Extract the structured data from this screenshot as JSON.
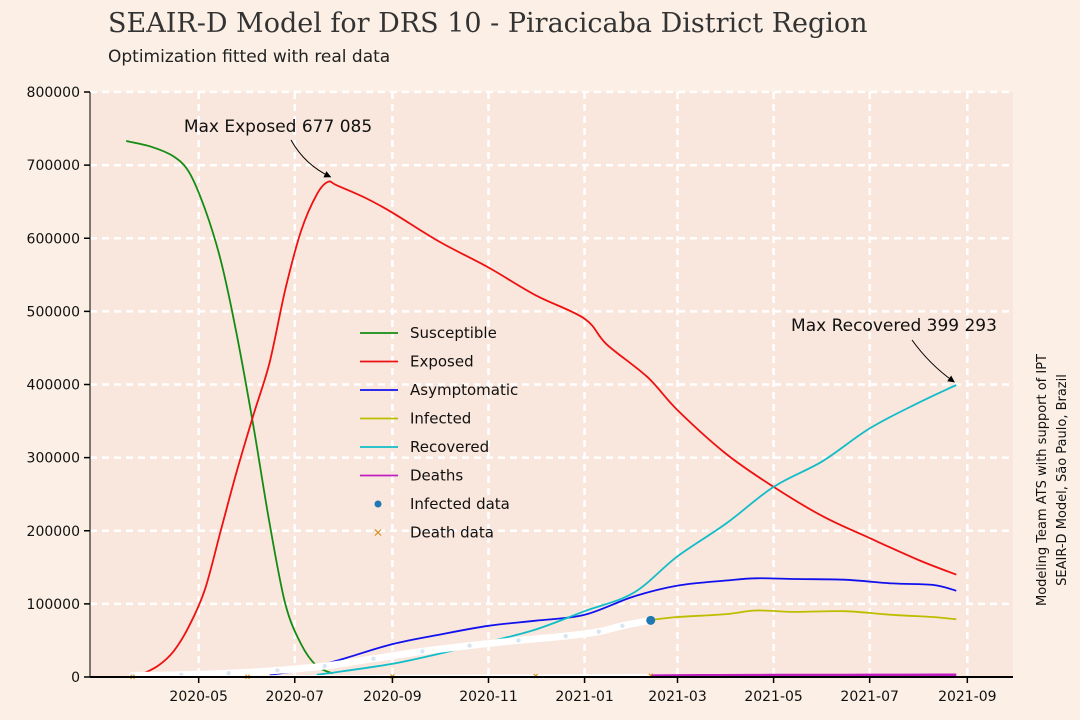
{
  "chart_data": {
    "type": "line",
    "title": "SEAIR-D Model for DRS 10 - Piracicaba District Region",
    "subtitle": "Optimization fitted with real data",
    "side_note_line1": "Modeling Team ATS with support of IPT",
    "side_note_line2": "SEAIR-D Model, São Paulo, Brazil",
    "xlabel": "",
    "ylabel": "",
    "ylim": [
      0,
      800000
    ],
    "yticks": [
      0,
      100000,
      200000,
      300000,
      400000,
      500000,
      600000,
      700000,
      800000
    ],
    "ytick_labels": [
      "0",
      "100000",
      "200000",
      "300000",
      "400000",
      "500000",
      "600000",
      "700000",
      "800000"
    ],
    "xlim": [
      "2020-02-22",
      "2021-09-30"
    ],
    "xticks": [
      "2020-05-01",
      "2020-07-01",
      "2020-09-01",
      "2020-11-01",
      "2021-01-01",
      "2021-03-01",
      "2021-05-01",
      "2021-07-01",
      "2021-09-01"
    ],
    "xtick_labels": [
      "2020-05",
      "2020-07",
      "2020-09",
      "2020-11",
      "2021-01",
      "2021-03",
      "2021-05",
      "2021-07",
      "2021-09"
    ],
    "grid": true,
    "legend_position": "center",
    "colors": {
      "background": "#fcf0e6",
      "plot_background": "#f9e6dc",
      "Susceptible": "#138c13",
      "Exposed": "#ee1111",
      "Asymptomatic": "#1111ee",
      "Infected": "#bdbd00",
      "Recovered": "#11bdc8",
      "Deaths": "#c020c0",
      "Infected data": "#1f77b4",
      "Death data": "#d4870a"
    },
    "series": [
      {
        "name": "Susceptible",
        "x": [
          "2020-03-16",
          "2020-04-01",
          "2020-04-15",
          "2020-04-25",
          "2020-05-05",
          "2020-05-15",
          "2020-05-25",
          "2020-06-05",
          "2020-06-15",
          "2020-06-25",
          "2020-07-05",
          "2020-07-15",
          "2020-07-25"
        ],
        "values": [
          733000,
          725000,
          712000,
          690000,
          640000,
          570000,
          470000,
          340000,
          210000,
          100000,
          45000,
          15000,
          5000
        ]
      },
      {
        "name": "Exposed",
        "x": [
          "2020-03-25",
          "2020-04-05",
          "2020-04-15",
          "2020-04-25",
          "2020-05-05",
          "2020-05-15",
          "2020-05-25",
          "2020-06-05",
          "2020-06-15",
          "2020-06-25",
          "2020-07-05",
          "2020-07-15",
          "2020-07-22",
          "2020-07-28",
          "2020-08-15",
          "2020-09-01",
          "2020-10-01",
          "2020-11-01",
          "2020-12-01",
          "2021-01-01",
          "2021-01-15",
          "2021-02-10",
          "2021-03-01",
          "2021-04-01",
          "2021-05-01",
          "2021-06-01",
          "2021-07-01",
          "2021-08-01",
          "2021-08-25"
        ],
        "values": [
          3000,
          15000,
          35000,
          70000,
          120000,
          200000,
          280000,
          360000,
          430000,
          530000,
          610000,
          660000,
          677085,
          672000,
          655000,
          635000,
          595000,
          560000,
          522000,
          490000,
          455000,
          410000,
          365000,
          305000,
          260000,
          220000,
          190000,
          160000,
          140000
        ]
      },
      {
        "name": "Asymptomatic",
        "x": [
          "2020-06-15",
          "2020-07-01",
          "2020-07-15",
          "2020-08-01",
          "2020-09-01",
          "2020-10-01",
          "2020-11-01",
          "2020-12-01",
          "2021-01-01",
          "2021-02-01",
          "2021-03-01",
          "2021-04-01",
          "2021-04-20",
          "2021-05-15",
          "2021-06-15",
          "2021-07-15",
          "2021-08-10",
          "2021-08-25"
        ],
        "values": [
          3000,
          8000,
          15000,
          25000,
          45000,
          58000,
          70000,
          77000,
          85000,
          110000,
          125000,
          132000,
          135000,
          134000,
          133000,
          128000,
          126000,
          118000
        ]
      },
      {
        "name": "Infected",
        "x": [
          "2021-02-12",
          "2021-03-01",
          "2021-04-01",
          "2021-04-20",
          "2021-05-15",
          "2021-06-15",
          "2021-07-15",
          "2021-08-10",
          "2021-08-25"
        ],
        "values": [
          78000,
          82000,
          86000,
          91000,
          89000,
          90000,
          85000,
          82000,
          79000
        ]
      },
      {
        "name": "Recovered",
        "x": [
          "2020-07-15",
          "2020-08-01",
          "2020-09-01",
          "2020-10-01",
          "2020-11-01",
          "2020-12-01",
          "2021-01-01",
          "2021-02-01",
          "2021-03-01",
          "2021-04-01",
          "2021-05-01",
          "2021-06-01",
          "2021-07-01",
          "2021-08-01",
          "2021-08-25"
        ],
        "values": [
          3000,
          8000,
          18000,
          32000,
          48000,
          65000,
          90000,
          115000,
          165000,
          210000,
          260000,
          295000,
          340000,
          375000,
          399293
        ]
      },
      {
        "name": "Deaths",
        "x": [
          "2021-02-12",
          "2021-03-15",
          "2021-04-15",
          "2021-05-15",
          "2021-06-15",
          "2021-07-15",
          "2021-08-15",
          "2021-08-25"
        ],
        "values": [
          1500,
          2000,
          2200,
          2400,
          2500,
          2600,
          2700,
          2800
        ]
      },
      {
        "name": "Infected data",
        "x": [
          "2020-03-20",
          "2020-04-20",
          "2020-05-20",
          "2020-06-20",
          "2020-07-20",
          "2020-08-20",
          "2020-09-20",
          "2020-10-20",
          "2020-11-20",
          "2020-12-20",
          "2021-01-10",
          "2021-01-25",
          "2021-02-12"
        ],
        "values": [
          2000,
          3000,
          5000,
          9000,
          15000,
          25000,
          35000,
          43000,
          50000,
          56000,
          62000,
          70000,
          77500
        ]
      },
      {
        "name": "Death data",
        "x": [
          "2020-03-20",
          "2020-06-01",
          "2020-09-01",
          "2020-12-01",
          "2021-02-12"
        ],
        "values": [
          100,
          300,
          900,
          1400,
          1900
        ]
      }
    ],
    "annotations": [
      {
        "text": "Max Exposed 677 085",
        "x": "2020-07-25",
        "y": 677085
      },
      {
        "text": "Max Recovered 399 293",
        "x": "2021-08-25",
        "y": 399293
      }
    ]
  }
}
